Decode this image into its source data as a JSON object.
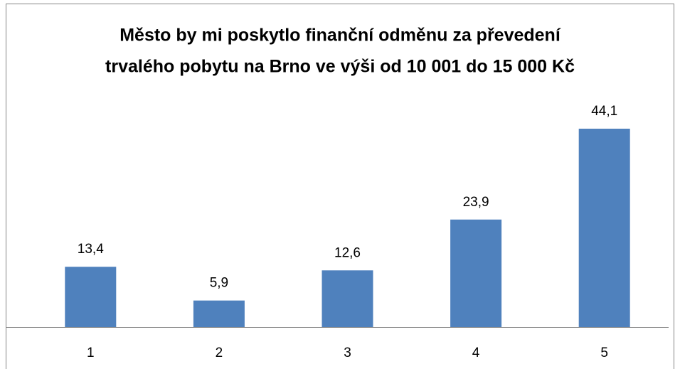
{
  "chart_data": {
    "type": "bar",
    "title": [
      "Město by mi poskytlo finanční odměnu za převedení",
      "trvalého pobytu na Brno ve výši od 10 001 do 15 000 Kč"
    ],
    "categories": [
      "1",
      "2",
      "3",
      "4",
      "5"
    ],
    "values": [
      13.4,
      5.9,
      12.6,
      23.9,
      44.1
    ],
    "value_labels": [
      "13,4",
      "5,9",
      "12,6",
      "23,9",
      "44,1"
    ],
    "color": "#4f81bd"
  }
}
